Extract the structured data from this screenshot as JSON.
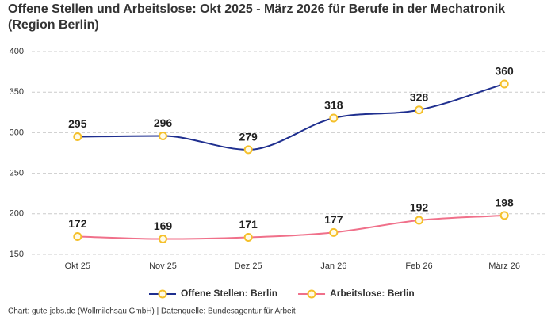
{
  "chart_data": {
    "type": "line",
    "title": "Offene Stellen und Arbeitslose: Okt 2025 - März 2026 für Berufe in der Mechatronik (Region Berlin)",
    "categories": [
      "Okt 25",
      "Nov 25",
      "Dez 25",
      "Jan 26",
      "Feb 26",
      "März 26"
    ],
    "series": [
      {
        "name": "Offene Stellen: Berlin",
        "color": "#1f2f8f",
        "values": [
          295,
          296,
          279,
          318,
          328,
          360
        ]
      },
      {
        "name": "Arbeitslose: Berlin",
        "color": "#f0708a",
        "values": [
          172,
          169,
          171,
          177,
          192,
          198
        ]
      }
    ],
    "marker_color": "#f5c02a",
    "ylim": [
      150,
      400
    ],
    "yticks": [
      150,
      200,
      250,
      300,
      350,
      400
    ],
    "grid": true,
    "legend": "bottom",
    "source": "Chart: gute-jobs.de (Wollmilchsau GmbH) | Datenquelle: Bundesagentur für Arbeit"
  }
}
